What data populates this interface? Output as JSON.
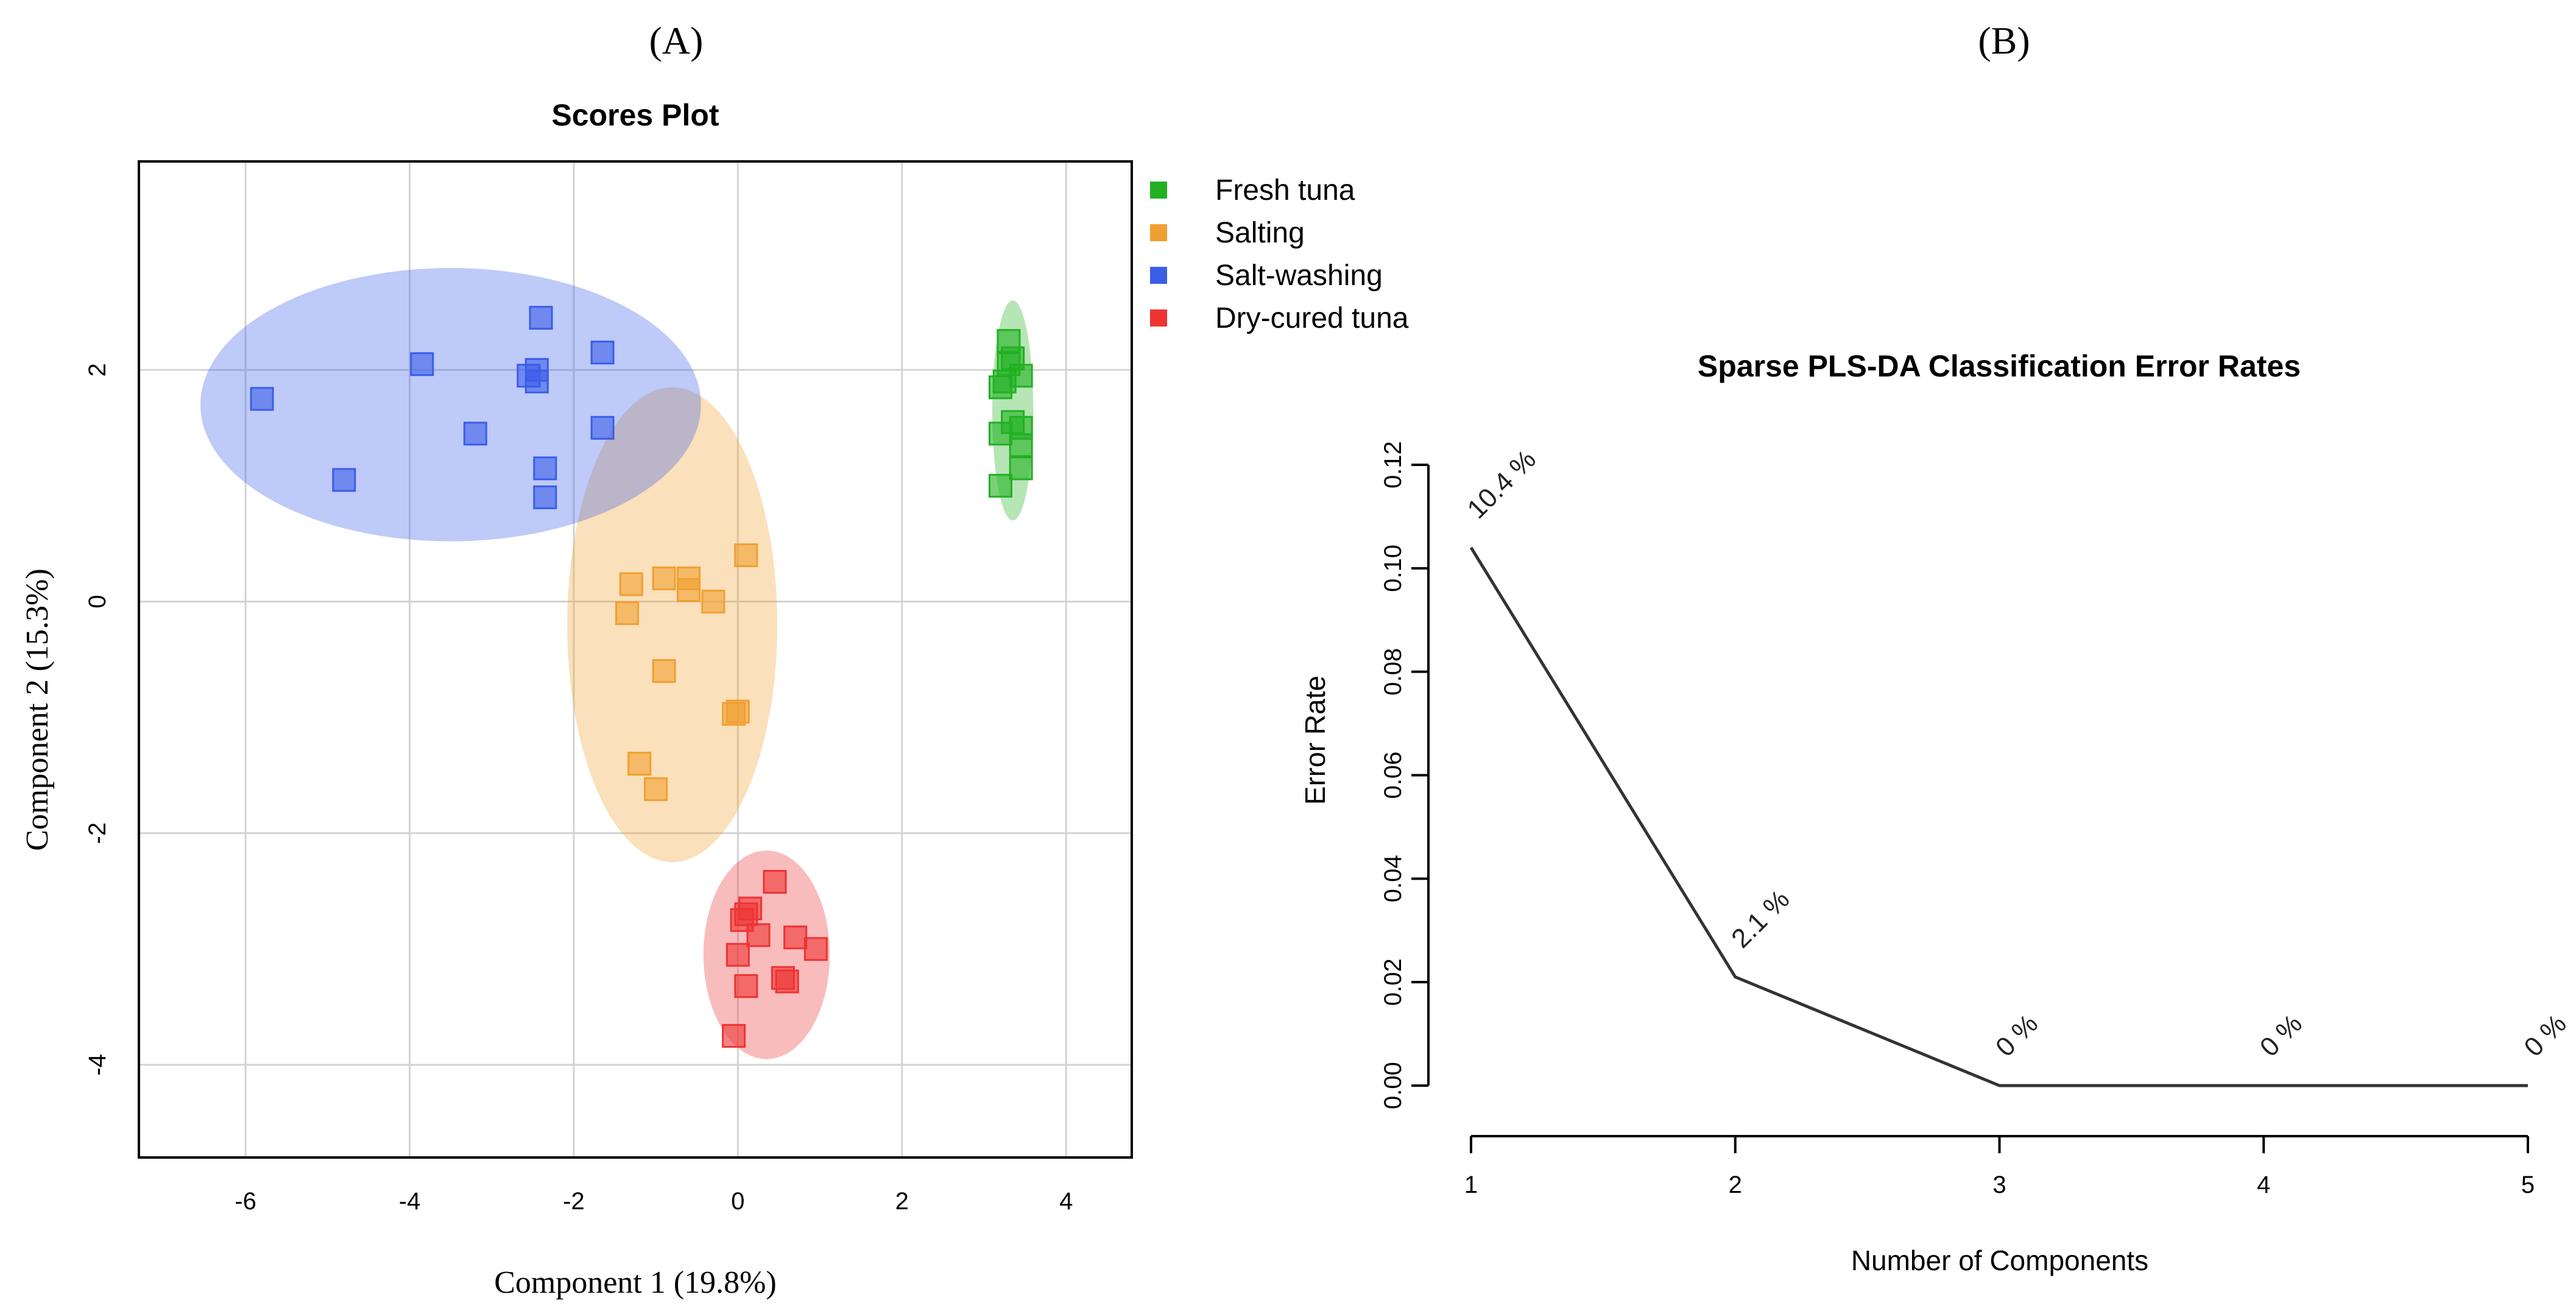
{
  "panels": {
    "a_label": "(A)",
    "b_label": "(B)"
  },
  "chart_data": [
    {
      "type": "scatter",
      "title": "Scores Plot",
      "xlabel": "Component 1 (19.8%)",
      "ylabel": "Component 2 (15.3%)",
      "xlim": [
        -7.3,
        4.8
      ],
      "ylim": [
        -4.8,
        3.8
      ],
      "xticks": [
        -6,
        -4,
        -2,
        0,
        2,
        4
      ],
      "yticks": [
        -4,
        -2,
        0,
        2
      ],
      "grid": true,
      "legend_position": "outside-top-right",
      "series": [
        {
          "name": "Fresh tuna",
          "color": "#22b022",
          "points": [
            [
              3.3,
              2.25
            ],
            [
              3.35,
              2.1
            ],
            [
              3.3,
              2.05
            ],
            [
              3.45,
              1.95
            ],
            [
              3.2,
              1.85
            ],
            [
              3.25,
              1.9
            ],
            [
              3.35,
              1.55
            ],
            [
              3.45,
              1.5
            ],
            [
              3.2,
              1.45
            ],
            [
              3.45,
              1.35
            ],
            [
              3.45,
              1.15
            ],
            [
              3.2,
              1.0
            ]
          ],
          "ellipse": {
            "cx": 3.35,
            "cy": 1.65,
            "rx": 0.25,
            "ry": 0.95
          }
        },
        {
          "name": "Salting",
          "color": "#f0a030",
          "points": [
            [
              0.1,
              0.4
            ],
            [
              -0.9,
              0.2
            ],
            [
              -0.6,
              0.2
            ],
            [
              -1.3,
              0.15
            ],
            [
              -0.6,
              0.1
            ],
            [
              -0.3,
              0.0
            ],
            [
              -1.35,
              -0.1
            ],
            [
              -0.9,
              -0.6
            ],
            [
              0.0,
              -0.95
            ],
            [
              -0.05,
              -0.97
            ],
            [
              -1.2,
              -1.4
            ],
            [
              -1.0,
              -1.62
            ]
          ],
          "ellipse": {
            "cx": -0.8,
            "cy": -0.2,
            "rx": 1.28,
            "ry": 2.05
          }
        },
        {
          "name": "Salt-washing",
          "color": "#3a5ee8",
          "points": [
            [
              -2.4,
              2.45
            ],
            [
              -1.65,
              2.15
            ],
            [
              -3.85,
              2.05
            ],
            [
              -2.45,
              2.0
            ],
            [
              -2.55,
              1.95
            ],
            [
              -2.45,
              1.9
            ],
            [
              -5.8,
              1.75
            ],
            [
              -1.65,
              1.5
            ],
            [
              -3.2,
              1.45
            ],
            [
              -2.35,
              1.15
            ],
            [
              -4.8,
              1.05
            ],
            [
              -2.35,
              0.9
            ]
          ],
          "ellipse": {
            "cx": -3.5,
            "cy": 1.7,
            "rx": 3.05,
            "ry": 1.18
          }
        },
        {
          "name": "Dry-cured tuna",
          "color": "#ee3333",
          "points": [
            [
              0.45,
              -2.42
            ],
            [
              0.15,
              -2.65
            ],
            [
              0.1,
              -2.7
            ],
            [
              0.05,
              -2.75
            ],
            [
              0.25,
              -2.88
            ],
            [
              0.7,
              -2.9
            ],
            [
              0.95,
              -3.0
            ],
            [
              0.0,
              -3.05
            ],
            [
              0.55,
              -3.25
            ],
            [
              0.6,
              -3.28
            ],
            [
              0.1,
              -3.32
            ],
            [
              -0.05,
              -3.75
            ]
          ],
          "ellipse": {
            "cx": 0.35,
            "cy": -3.05,
            "rx": 0.77,
            "ry": 0.9
          }
        }
      ]
    },
    {
      "type": "line",
      "title": "Sparse PLS-DA Classification Error Rates",
      "xlabel": "Number of Components",
      "ylabel": "Error Rate",
      "x": [
        1,
        2,
        3,
        4,
        5
      ],
      "values": [
        0.104,
        0.021,
        0.0,
        0.0,
        0.0
      ],
      "data_labels": [
        "10.4 %",
        "2.1 %",
        "0 %",
        "0 %",
        "0 %"
      ],
      "xticks": [
        1,
        2,
        3,
        4,
        5
      ],
      "yticks": [
        "0.00",
        "0.02",
        "0.04",
        "0.06",
        "0.08",
        "0.10",
        "0.12"
      ],
      "ylim": [
        0,
        0.12
      ],
      "grid": false,
      "line_color": "#333333"
    }
  ]
}
